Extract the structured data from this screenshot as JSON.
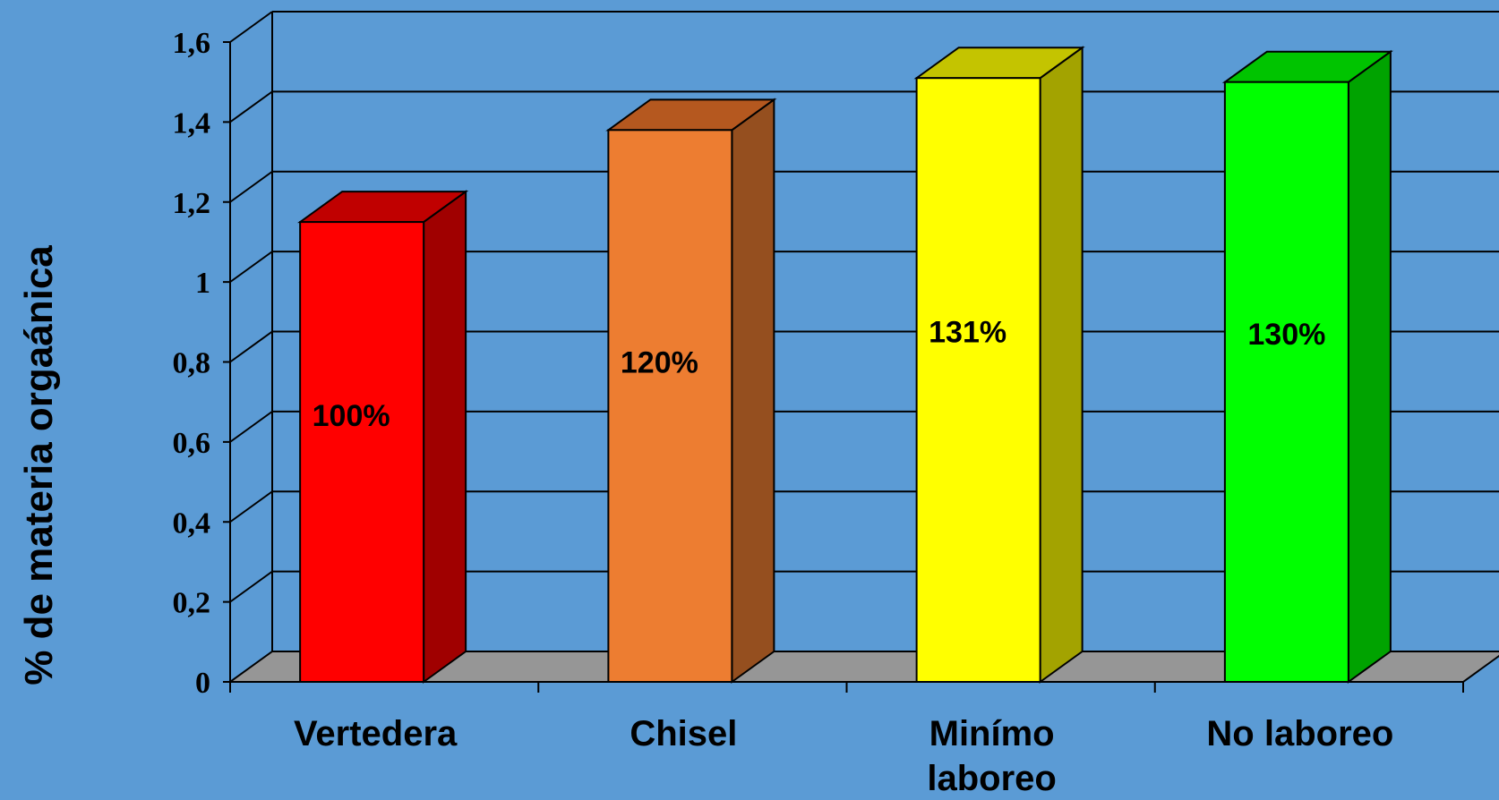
{
  "chart_data": {
    "type": "bar",
    "style": "3d-column",
    "ylabel": "% de materia orgaánica",
    "xlabel": "",
    "title": "",
    "ylim": [
      0,
      1.6
    ],
    "yticks": [
      "0",
      "0,2",
      "0,4",
      "0,6",
      "0,8",
      "1",
      "1,2",
      "1,4",
      "1,6"
    ],
    "grid": true,
    "categories": [
      [
        "Vertedera"
      ],
      [
        "Chisel"
      ],
      [
        "Minímo",
        "laboreo"
      ],
      [
        "No laboreo"
      ]
    ],
    "values": [
      1.15,
      1.38,
      1.51,
      1.5
    ],
    "data_labels": [
      "100%",
      "120%",
      "131%",
      "130%"
    ],
    "colors": [
      {
        "front": "#ff0000",
        "top": "#c00000",
        "side": "#a00000"
      },
      {
        "front": "#ed7d31",
        "top": "#b5581f",
        "side": "#954f1f"
      },
      {
        "front": "#ffff00",
        "top": "#c4c400",
        "side": "#a3a300"
      },
      {
        "front": "#00ff00",
        "top": "#00c400",
        "side": "#00a300"
      }
    ],
    "background": "#5b9bd5",
    "floor_color": "#969696"
  }
}
